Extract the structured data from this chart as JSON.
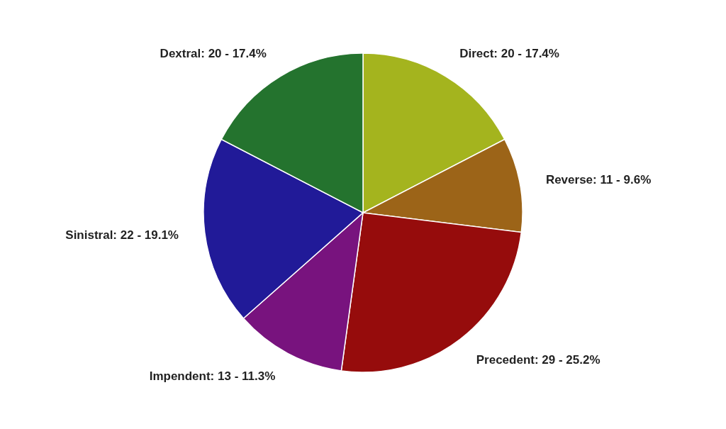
{
  "chart_data": {
    "type": "pie",
    "categories": [
      "Direct",
      "Reverse",
      "Precedent",
      "Impendent",
      "Sinistral",
      "Dextral"
    ],
    "values": [
      20,
      11,
      29,
      13,
      22,
      20
    ],
    "colors": [
      "#a4b41e",
      "#9c6418",
      "#960c0c",
      "#78137e",
      "#211a98",
      "#24732e"
    ],
    "value_labels": [
      "20 - 17.4%",
      "11 - 9.6%",
      "29 - 25.2%",
      "13 - 11.3%",
      "22 - 19.1%",
      "20 - 17.4%"
    ]
  }
}
